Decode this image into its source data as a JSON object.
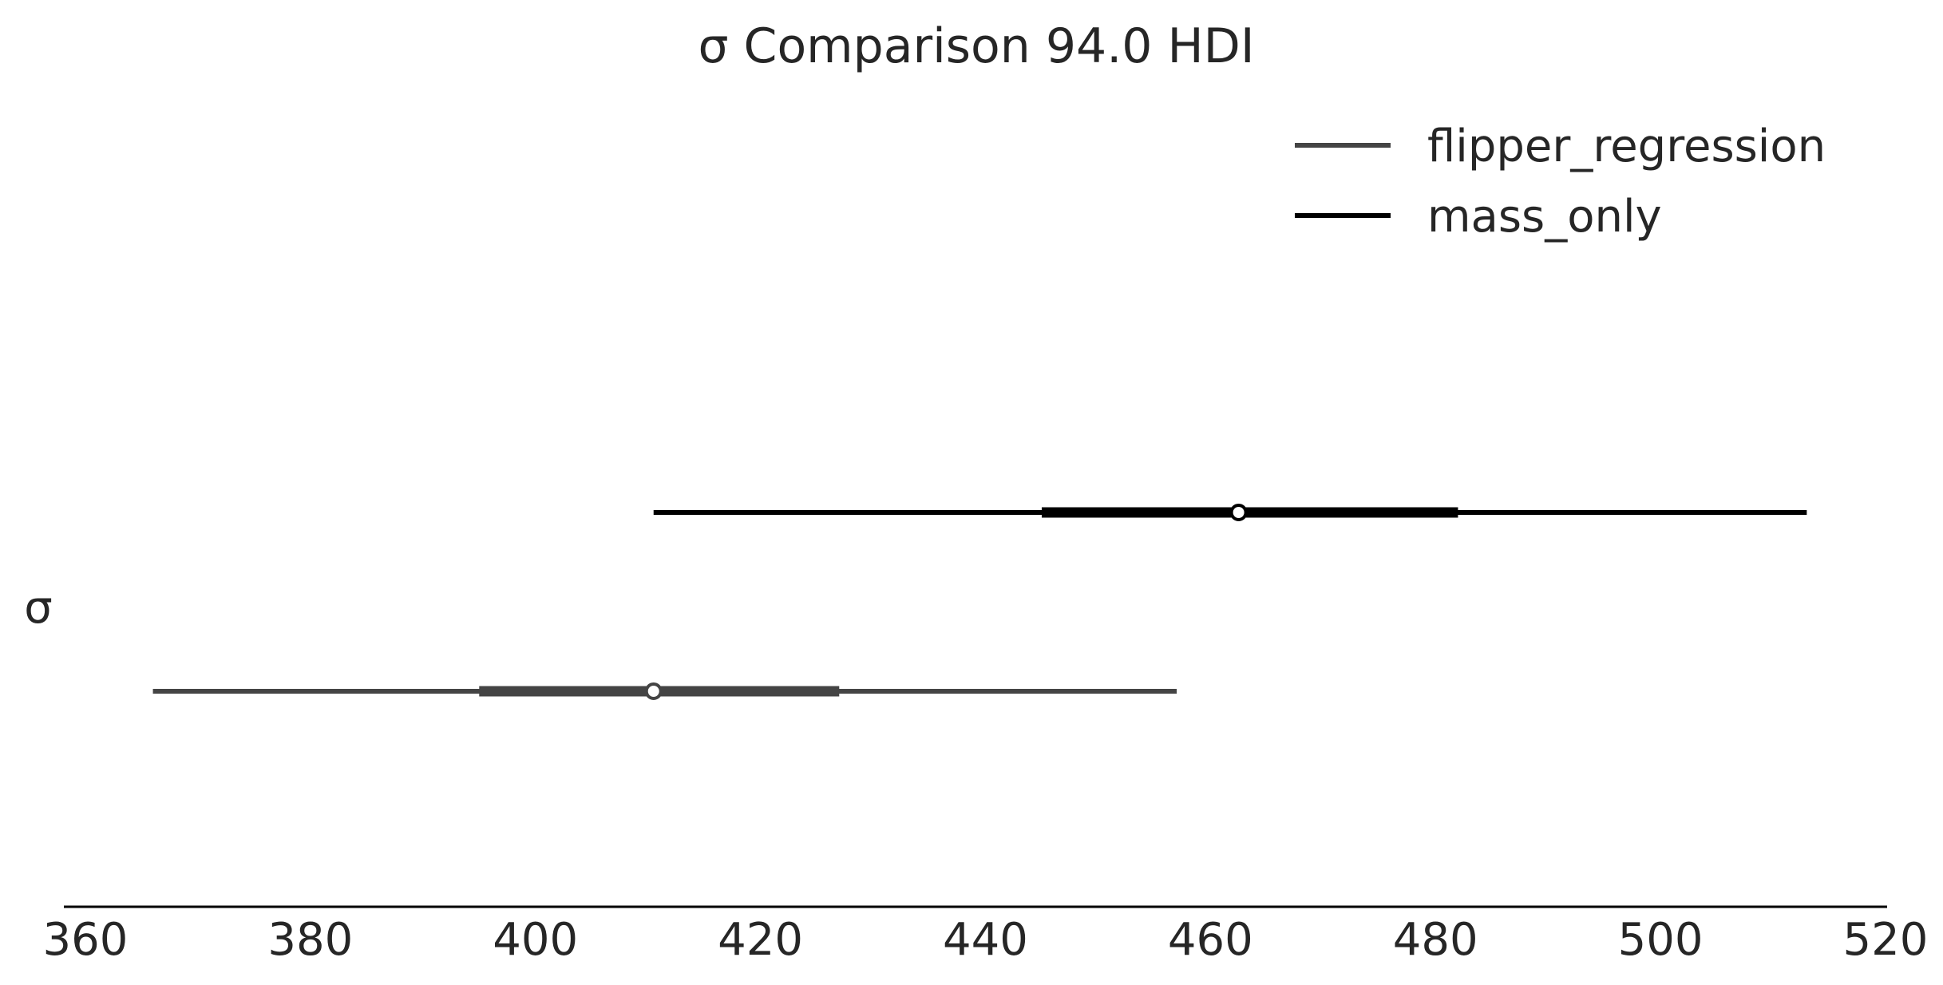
{
  "chart_data": {
    "type": "forest",
    "title": "σ Comparison 94.0 HDI",
    "xlabel": "",
    "ylabel": "σ",
    "xlim": [
      360,
      520
    ],
    "xticks": [
      360,
      380,
      400,
      420,
      440,
      460,
      480,
      500,
      520
    ],
    "xtick_labels": [
      "360",
      "380",
      "400",
      "420",
      "440",
      "460",
      "480",
      "500",
      "520"
    ],
    "grid": false,
    "legend_position": "top-right",
    "series": [
      {
        "name": "flipper_regression",
        "color": "#444444",
        "hdi_94": [
          366,
          457
        ],
        "iqr": [
          395,
          427
        ],
        "point": 410.5
      },
      {
        "name": "mass_only",
        "color": "#000000",
        "hdi_94": [
          410.5,
          513
        ],
        "iqr": [
          445,
          482
        ],
        "point": 462.5
      }
    ]
  }
}
